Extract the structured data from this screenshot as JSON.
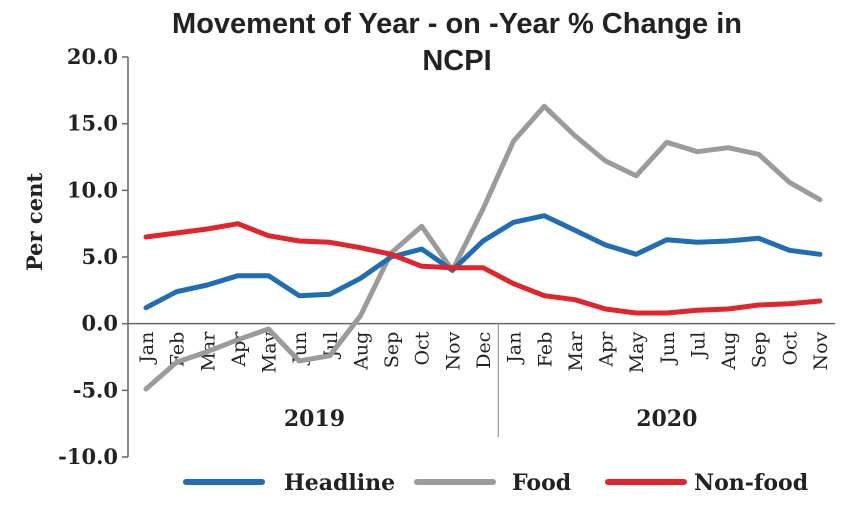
{
  "chart_data": {
    "type": "line",
    "title": [
      "Movement of Year - on -Year % Change in",
      "NCPI"
    ],
    "ylabel": "Per cent",
    "ylim": [
      -10,
      20
    ],
    "yticks": [
      "20.0",
      "15.0",
      "10.0",
      "5.0",
      "0.0",
      "-5.0",
      "-10.0"
    ],
    "categories": [
      "Jan",
      "Feb",
      "Mar",
      "Apr",
      "May",
      "Jun",
      "Jul",
      "Aug",
      "Sep",
      "Oct",
      "Nov",
      "Dec",
      "Jan",
      "Feb",
      "Mar",
      "Apr",
      "May",
      "Jun",
      "Jul",
      "Aug",
      "Sep",
      "Oct",
      "Nov"
    ],
    "groups": [
      {
        "label": "2019",
        "start": 0,
        "end": 11
      },
      {
        "label": "2020",
        "start": 12,
        "end": 22
      }
    ],
    "legend_position": "bottom",
    "series": [
      {
        "name": "Headline",
        "color": "#1f6db5",
        "values": [
          1.2,
          2.4,
          2.9,
          3.6,
          3.6,
          2.1,
          2.2,
          3.4,
          5.0,
          5.6,
          4.0,
          6.2,
          7.6,
          8.1,
          7.0,
          5.9,
          5.2,
          6.3,
          6.1,
          6.2,
          6.4,
          5.5,
          5.2
        ]
      },
      {
        "name": "Food",
        "color": "#9b9b9b",
        "values": [
          -4.9,
          -2.9,
          -2.1,
          -1.2,
          -0.4,
          -2.8,
          -2.4,
          0.6,
          5.3,
          7.3,
          4.0,
          8.6,
          13.7,
          16.3,
          14.1,
          12.2,
          11.1,
          13.6,
          12.9,
          13.2,
          12.7,
          10.6,
          9.3
        ]
      },
      {
        "name": "Non-food",
        "color": "#e0252b",
        "values": [
          6.5,
          6.8,
          7.1,
          7.5,
          6.6,
          6.2,
          6.1,
          5.7,
          5.2,
          4.3,
          4.2,
          4.2,
          3.0,
          2.1,
          1.8,
          1.1,
          0.8,
          0.8,
          1.0,
          1.1,
          1.4,
          1.5,
          1.7
        ]
      }
    ]
  }
}
